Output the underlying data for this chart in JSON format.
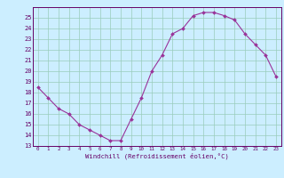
{
  "x": [
    0,
    1,
    2,
    3,
    4,
    5,
    6,
    7,
    8,
    9,
    10,
    11,
    12,
    13,
    14,
    15,
    16,
    17,
    18,
    19,
    20,
    21,
    22,
    23
  ],
  "y": [
    18.5,
    17.5,
    16.5,
    16.0,
    15.0,
    14.5,
    14.0,
    13.5,
    13.5,
    15.5,
    17.5,
    20.0,
    21.5,
    23.5,
    24.0,
    25.2,
    25.5,
    25.5,
    25.2,
    24.8,
    23.5,
    22.5,
    21.5,
    19.5
  ],
  "xlabel": "Windchill (Refroidissement éolien,°C)",
  "xlim": [
    -0.5,
    23.5
  ],
  "ylim": [
    13,
    26
  ],
  "yticks": [
    13,
    14,
    15,
    16,
    17,
    18,
    19,
    20,
    21,
    22,
    23,
    24,
    25
  ],
  "xticks": [
    0,
    1,
    2,
    3,
    4,
    5,
    6,
    7,
    8,
    9,
    10,
    11,
    12,
    13,
    14,
    15,
    16,
    17,
    18,
    19,
    20,
    21,
    22,
    23
  ],
  "xtick_labels": [
    "0",
    "1",
    "2",
    "3",
    "4",
    "5",
    "6",
    "7",
    "8",
    "9",
    "10",
    "11",
    "12",
    "13",
    "14",
    "15",
    "16",
    "17",
    "18",
    "19",
    "20",
    "21",
    "22",
    "23"
  ],
  "line_color": "#993399",
  "marker_color": "#993399",
  "bg_color": "#cceeff",
  "grid_color": "#99ccbb",
  "label_color": "#660066",
  "tick_color": "#660066",
  "spine_color": "#660066"
}
